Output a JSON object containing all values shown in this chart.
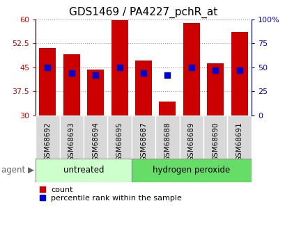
{
  "title": "GDS1469 / PA4227_pchR_at",
  "categories": [
    "GSM68692",
    "GSM68693",
    "GSM68694",
    "GSM68695",
    "GSM68687",
    "GSM68688",
    "GSM68689",
    "GSM68690",
    "GSM68691"
  ],
  "count_values": [
    51.0,
    49.0,
    44.2,
    59.8,
    47.0,
    34.2,
    58.8,
    46.2,
    56.0
  ],
  "percentile_values": [
    50,
    44,
    42,
    50,
    44,
    42,
    50,
    47,
    47
  ],
  "untreated_indices": [
    0,
    1,
    2,
    3
  ],
  "peroxide_indices": [
    4,
    5,
    6,
    7,
    8
  ],
  "ylim_left": [
    30,
    60
  ],
  "ylim_right": [
    0,
    100
  ],
  "yticks_left": [
    30,
    37.5,
    45,
    52.5,
    60
  ],
  "yticks_right": [
    0,
    25,
    50,
    75,
    100
  ],
  "ytick_labels_left": [
    "30",
    "37.5",
    "45",
    "52.5",
    "60"
  ],
  "ytick_labels_right": [
    "0",
    "25",
    "50",
    "75",
    "100%"
  ],
  "bar_color": "#cc0000",
  "dot_color": "#0000cc",
  "untreated_color": "#ccffcc",
  "peroxide_color": "#66dd66",
  "tickbox_color": "#d8d8d8",
  "agent_label": "agent",
  "untreated_label": "untreated",
  "peroxide_label": "hydrogen peroxide",
  "legend_count": "count",
  "legend_percentile": "percentile rank within the sample",
  "bar_width": 0.7,
  "dot_size": 40,
  "title_fontsize": 11,
  "axis_fontsize": 7.5,
  "tick_fontsize": 8,
  "label_fontsize": 8.5,
  "legend_fontsize": 8
}
